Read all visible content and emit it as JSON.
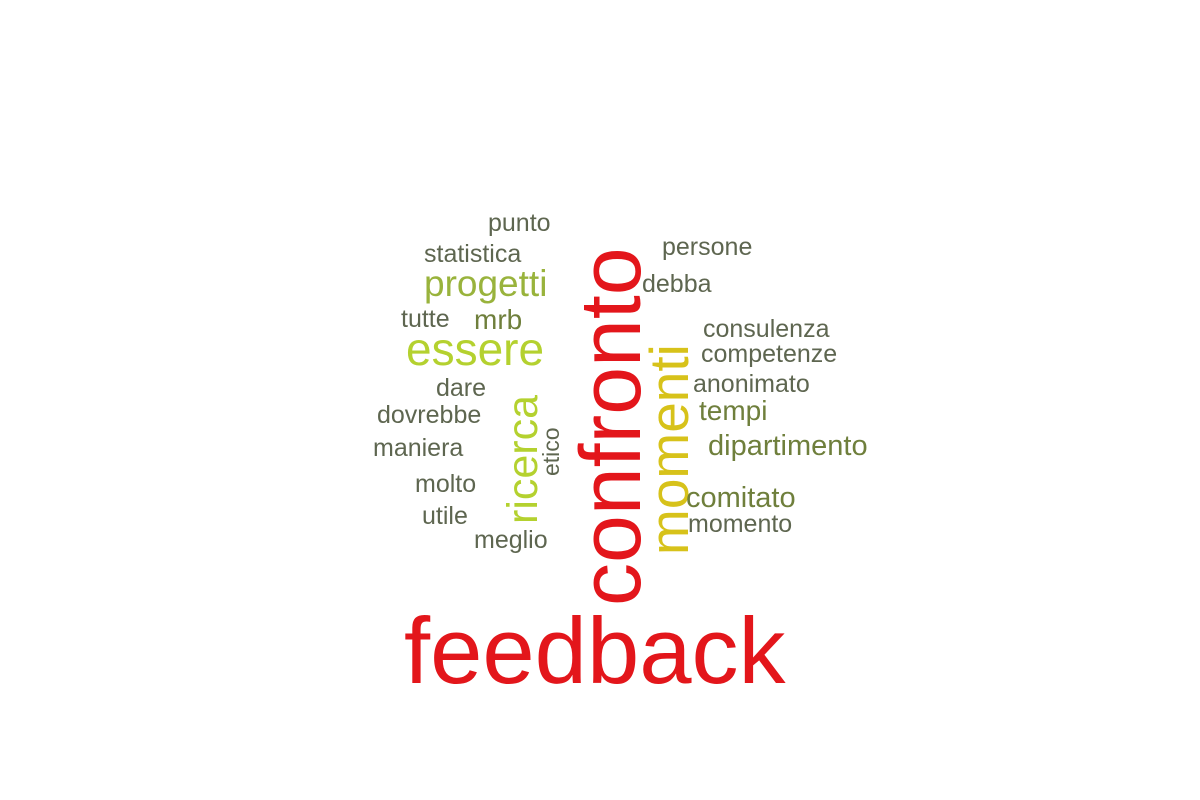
{
  "colors": {
    "red": "#e3161b",
    "yellow": "#d7c21a",
    "lime": "#b4d12f",
    "olive_green": "#99b33c",
    "dark_olive": "#6f7f3c",
    "gray_olive": "#5e6650"
  },
  "words": {
    "feedback": "feedback",
    "confronto": "confronto",
    "momenti": "momenti",
    "ricerca": "ricerca",
    "essere": "essere",
    "progetti": "progetti",
    "dipartimento": "dipartimento",
    "comitato": "comitato",
    "tempi": "tempi",
    "mrb": "mrb",
    "punto": "punto",
    "statistica": "statistica",
    "persone": "persone",
    "debba": "debba",
    "tutte": "tutte",
    "consulenza": "consulenza",
    "competenze": "competenze",
    "anonimato": "anonimato",
    "dare": "dare",
    "dovrebbe": "dovrebbe",
    "etico": "etico",
    "maniera": "maniera",
    "molto": "molto",
    "utile": "utile",
    "meglio": "meglio",
    "momento": "momento"
  }
}
